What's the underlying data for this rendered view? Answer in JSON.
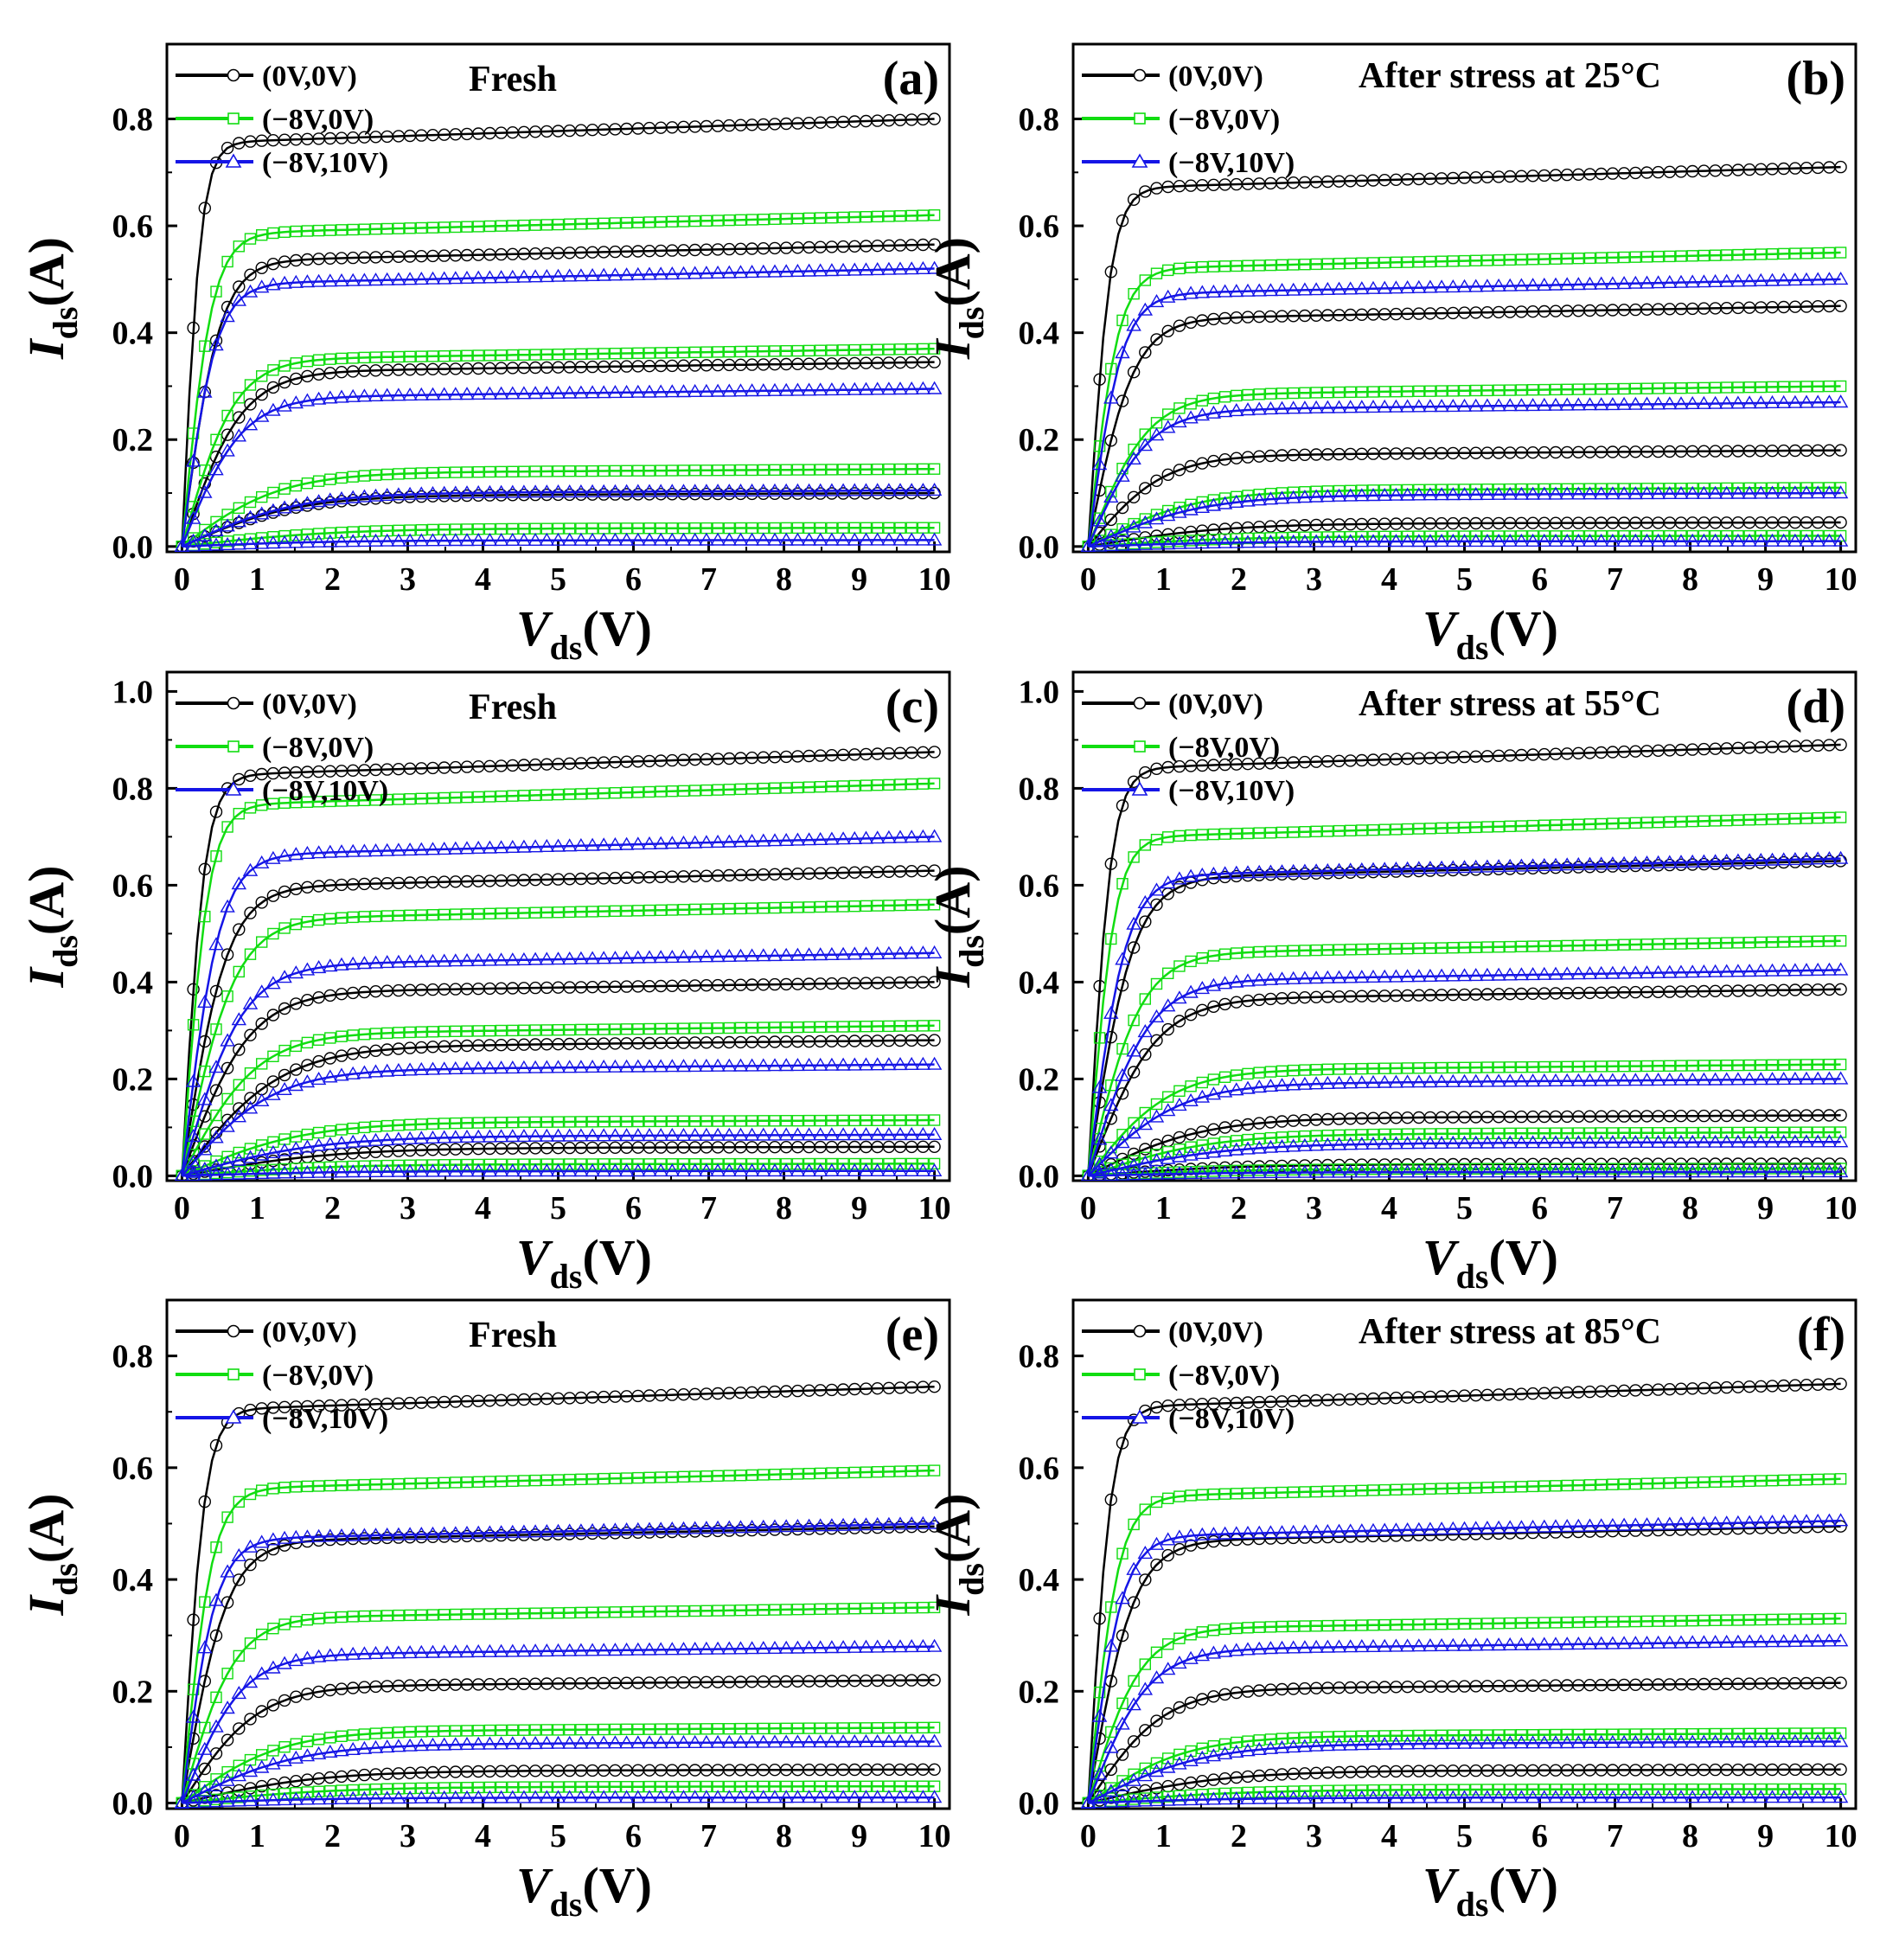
{
  "figure": {
    "xlabel_main": "V",
    "xlabel_sub": "ds",
    "xlabel_unit": "(V)",
    "ylabel_main": "I",
    "ylabel_sub": "ds",
    "ylabel_unit": "(A)"
  },
  "colors": {
    "black": "#000000",
    "green": "#11dd11",
    "blue": "#1515e6"
  },
  "chart_data": [
    {
      "id": "a",
      "letter": "(a)",
      "type": "scatter",
      "title": "Fresh",
      "xlabel": "Vds(V)",
      "ylabel": "Ids(A)",
      "xlim": [
        -0.2,
        10.2
      ],
      "ylim": [
        -0.01,
        0.94
      ],
      "xticks": [
        0,
        1,
        2,
        3,
        4,
        5,
        6,
        7,
        8,
        9,
        10
      ],
      "yticks": [
        0.0,
        0.2,
        0.4,
        0.6,
        0.8
      ],
      "ytick_labels": [
        "0.0",
        "0.2",
        "0.4",
        "0.6",
        "0.8"
      ],
      "legend": [
        "(0V,0V)",
        "(−8V,0V)",
        "(−8V,10V)"
      ],
      "series": [
        {
          "name": "(0V,0V)",
          "marker": "circle",
          "color": "black",
          "sat": [
            0.8,
            0.565,
            0.345,
            0.1
          ],
          "knee": [
            0.25,
            0.5,
            0.8,
            1.5
          ]
        },
        {
          "name": "(−8V,0V)",
          "marker": "square",
          "color": "green",
          "sat": [
            0.62,
            0.37,
            0.145,
            0.035
          ],
          "knee": [
            0.4,
            0.7,
            1.3,
            2.0
          ]
        },
        {
          "name": "(−8V,10V)",
          "marker": "triangle",
          "color": "blue",
          "sat": [
            0.52,
            0.295,
            0.105,
            0.012
          ],
          "knee": [
            0.45,
            0.8,
            1.5,
            2.0
          ]
        }
      ]
    },
    {
      "id": "b",
      "letter": "(b)",
      "type": "scatter",
      "title": "After stress at 25°C",
      "xlabel": "Vds(V)",
      "ylabel": "Ids(A)",
      "xlim": [
        -0.2,
        10.2
      ],
      "ylim": [
        -0.01,
        0.94
      ],
      "xticks": [
        0,
        1,
        2,
        3,
        4,
        5,
        6,
        7,
        8,
        9,
        10
      ],
      "yticks": [
        0.0,
        0.2,
        0.4,
        0.6,
        0.8
      ],
      "ytick_labels": [
        "0.0",
        "0.2",
        "0.4",
        "0.6",
        "0.8"
      ],
      "legend": [
        "(0V,0V)",
        "(−8V,0V)",
        "(−8V,10V)"
      ],
      "series": [
        {
          "name": "(0V,0V)",
          "marker": "circle",
          "color": "black",
          "sat": [
            0.71,
            0.45,
            0.18,
            0.045
          ],
          "knee": [
            0.3,
            0.6,
            1.0,
            1.8
          ]
        },
        {
          "name": "(−8V,0V)",
          "marker": "square",
          "color": "green",
          "sat": [
            0.55,
            0.3,
            0.11,
            0.02
          ],
          "knee": [
            0.4,
            0.8,
            1.4,
            2.0
          ]
        },
        {
          "name": "(−8V,10V)",
          "marker": "triangle",
          "color": "blue",
          "sat": [
            0.5,
            0.27,
            0.1,
            0.01
          ],
          "knee": [
            0.45,
            0.8,
            1.5,
            2.0
          ]
        }
      ]
    },
    {
      "id": "c",
      "letter": "(c)",
      "type": "scatter",
      "title": "Fresh",
      "xlabel": "Vds(V)",
      "ylabel": "Ids(A)",
      "xlim": [
        -0.2,
        10.2
      ],
      "ylim": [
        -0.01,
        1.04
      ],
      "xticks": [
        0,
        1,
        2,
        3,
        4,
        5,
        6,
        7,
        8,
        9,
        10
      ],
      "yticks": [
        0.0,
        0.2,
        0.4,
        0.6,
        0.8,
        1.0
      ],
      "ytick_labels": [
        "0.0",
        "0.2",
        "0.4",
        "0.6",
        "0.8",
        "1.0"
      ],
      "legend": [
        "(0V,0V)",
        "(−8V,0V)",
        "(−8V,10V)"
      ],
      "series": [
        {
          "name": "(0V,0V)",
          "marker": "circle",
          "color": "black",
          "sat": [
            0.875,
            0.63,
            0.4,
            0.28,
            0.06
          ],
          "knee": [
            0.3,
            0.6,
            0.9,
            1.3,
            2.0
          ]
        },
        {
          "name": "(−8V,0V)",
          "marker": "square",
          "color": "green",
          "sat": [
            0.81,
            0.56,
            0.31,
            0.115,
            0.025
          ],
          "knee": [
            0.35,
            0.7,
            1.0,
            1.6,
            2.0
          ]
        },
        {
          "name": "(−8V,10V)",
          "marker": "triangle",
          "color": "blue",
          "sat": [
            0.7,
            0.46,
            0.23,
            0.085,
            0.01
          ],
          "knee": [
            0.5,
            0.8,
            1.2,
            1.8,
            2.0
          ]
        }
      ]
    },
    {
      "id": "d",
      "letter": "(d)",
      "type": "scatter",
      "title": "After stress at 55°C",
      "xlabel": "Vds(V)",
      "ylabel": "Ids(A)",
      "xlim": [
        -0.2,
        10.2
      ],
      "ylim": [
        -0.01,
        1.04
      ],
      "xticks": [
        0,
        1,
        2,
        3,
        4,
        5,
        6,
        7,
        8,
        9,
        10
      ],
      "yticks": [
        0.0,
        0.2,
        0.4,
        0.6,
        0.8,
        1.0
      ],
      "ytick_labels": [
        "0.0",
        "0.2",
        "0.4",
        "0.6",
        "0.8",
        "1.0"
      ],
      "legend": [
        "(0V,0V)",
        "(−8V,0V)",
        "(−8V,10V)"
      ],
      "series": [
        {
          "name": "(0V,0V)",
          "marker": "circle",
          "color": "black",
          "sat": [
            0.89,
            0.65,
            0.385,
            0.125,
            0.025
          ],
          "knee": [
            0.3,
            0.6,
            0.9,
            1.5,
            2.0
          ]
        },
        {
          "name": "(−8V,0V)",
          "marker": "square",
          "color": "green",
          "sat": [
            0.74,
            0.485,
            0.23,
            0.09,
            0.015
          ],
          "knee": [
            0.35,
            0.7,
            1.1,
            1.6,
            2.0
          ]
        },
        {
          "name": "(−8V,10V)",
          "marker": "triangle",
          "color": "blue",
          "sat": [
            0.655,
            0.425,
            0.2,
            0.07,
            0.008
          ],
          "knee": [
            0.5,
            0.8,
            1.2,
            1.8,
            2.0
          ]
        }
      ]
    },
    {
      "id": "e",
      "letter": "(e)",
      "type": "scatter",
      "title": "Fresh",
      "xlabel": "Vds(V)",
      "ylabel": "Ids(A)",
      "xlim": [
        -0.2,
        10.2
      ],
      "ylim": [
        -0.01,
        0.9
      ],
      "xticks": [
        0,
        1,
        2,
        3,
        4,
        5,
        6,
        7,
        8,
        9,
        10
      ],
      "yticks": [
        0.0,
        0.2,
        0.4,
        0.6,
        0.8
      ],
      "ytick_labels": [
        "0.0",
        "0.2",
        "0.4",
        "0.6",
        "0.8"
      ],
      "legend": [
        "(0V,0V)",
        "(−8V,0V)",
        "(−8V,10V)"
      ],
      "series": [
        {
          "name": "(0V,0V)",
          "marker": "circle",
          "color": "black",
          "sat": [
            0.745,
            0.495,
            0.22,
            0.06
          ],
          "knee": [
            0.3,
            0.6,
            1.0,
            1.8
          ]
        },
        {
          "name": "(−8V,0V)",
          "marker": "square",
          "color": "green",
          "sat": [
            0.595,
            0.35,
            0.135,
            0.03
          ],
          "knee": [
            0.4,
            0.7,
            1.3,
            2.0
          ]
        },
        {
          "name": "(−8V,10V)",
          "marker": "triangle",
          "color": "blue",
          "sat": [
            0.5,
            0.28,
            0.11,
            0.01
          ],
          "knee": [
            0.45,
            0.8,
            1.5,
            2.0
          ]
        }
      ]
    },
    {
      "id": "f",
      "letter": "(f)",
      "type": "scatter",
      "title": "After stress at 85°C",
      "xlabel": "Vds(V)",
      "ylabel": "Ids(A)",
      "xlim": [
        -0.2,
        10.2
      ],
      "ylim": [
        -0.01,
        0.9
      ],
      "xticks": [
        0,
        1,
        2,
        3,
        4,
        5,
        6,
        7,
        8,
        9,
        10
      ],
      "yticks": [
        0.0,
        0.2,
        0.4,
        0.6,
        0.8
      ],
      "ytick_labels": [
        "0.0",
        "0.2",
        "0.4",
        "0.6",
        "0.8"
      ],
      "legend": [
        "(0V,0V)",
        "(−8V,0V)",
        "(−8V,10V)"
      ],
      "series": [
        {
          "name": "(0V,0V)",
          "marker": "circle",
          "color": "black",
          "sat": [
            0.75,
            0.495,
            0.215,
            0.06
          ],
          "knee": [
            0.3,
            0.6,
            1.0,
            1.8
          ]
        },
        {
          "name": "(−8V,0V)",
          "marker": "square",
          "color": "green",
          "sat": [
            0.58,
            0.33,
            0.125,
            0.025
          ],
          "knee": [
            0.4,
            0.7,
            1.3,
            2.0
          ]
        },
        {
          "name": "(−8V,10V)",
          "marker": "triangle",
          "color": "blue",
          "sat": [
            0.505,
            0.29,
            0.11,
            0.01
          ],
          "knee": [
            0.45,
            0.8,
            1.5,
            2.0
          ]
        }
      ]
    }
  ]
}
